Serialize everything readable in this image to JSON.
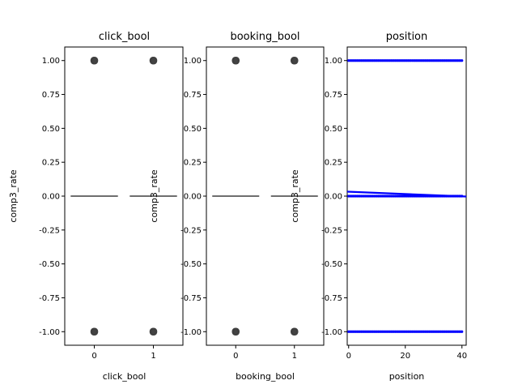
{
  "colors": {
    "box_line": "#3f3f3f",
    "outlier": "#3f3f3f",
    "scatter": "#0000ff",
    "regression_line": "#0000ff",
    "axes": "#000000",
    "background": "#ffffff"
  },
  "chart_data": [
    {
      "type": "box",
      "title": "click_bool",
      "xlabel": "click_bool",
      "ylabel": "comp3_rate",
      "categories": [
        "0",
        "1"
      ],
      "ylim": [
        -1.1,
        1.1
      ],
      "yticks": [
        "-1.00",
        "-0.75",
        "-0.50",
        "-0.25",
        "0.00",
        "0.25",
        "0.50",
        "0.75",
        "1.00"
      ],
      "boxes": [
        {
          "category": "0",
          "q1": 0,
          "median": 0,
          "q3": 0,
          "whisker_low": 0,
          "whisker_high": 0,
          "outliers": [
            -1,
            1
          ]
        },
        {
          "category": "1",
          "q1": 0,
          "median": 0,
          "q3": 0,
          "whisker_low": 0,
          "whisker_high": 0,
          "outliers": [
            -1,
            1
          ]
        }
      ]
    },
    {
      "type": "box",
      "title": "booking_bool",
      "xlabel": "booking_bool",
      "ylabel": "comp3_rate",
      "categories": [
        "0",
        "1"
      ],
      "ylim": [
        -1.1,
        1.1
      ],
      "yticks": [
        "-1.00",
        "-0.75",
        "-0.50",
        "-0.25",
        "0.00",
        "0.25",
        "0.50",
        "0.75",
        "1.00"
      ],
      "boxes": [
        {
          "category": "0",
          "q1": 0,
          "median": 0,
          "q3": 0,
          "whisker_low": 0,
          "whisker_high": 0,
          "outliers": [
            -1,
            1
          ]
        },
        {
          "category": "1",
          "q1": 0,
          "median": 0,
          "q3": 0,
          "whisker_low": 0,
          "whisker_high": 0,
          "outliers": [
            -1,
            1
          ]
        }
      ]
    },
    {
      "type": "scatter",
      "title": "position",
      "xlabel": "position",
      "ylabel": "comp3_rate",
      "xlim": [
        -0.5,
        41.5
      ],
      "ylim": [
        -1.1,
        1.1
      ],
      "xticks": [
        "0",
        "20",
        "40"
      ],
      "yticks": [
        "-1.00",
        "-0.75",
        "-0.50",
        "-0.25",
        "0.00",
        "0.25",
        "0.50",
        "0.75",
        "1.00"
      ],
      "x_min": 0,
      "x_max": 40,
      "y_levels": [
        -1,
        0,
        1
      ],
      "regression": {
        "x": [
          -0.5,
          41.5
        ],
        "y": [
          0.033,
          -0.003
        ]
      }
    }
  ]
}
